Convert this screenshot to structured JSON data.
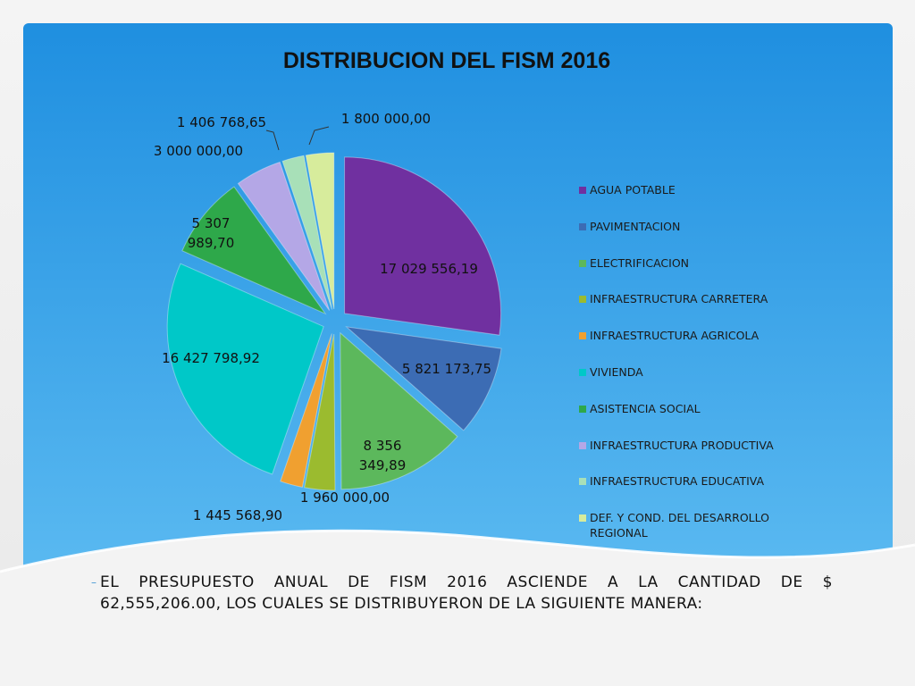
{
  "slide": {
    "caption_bullet": "–",
    "caption_line1_words": [
      "EL",
      "PRESUPUESTO",
      "ANUAL",
      "DE",
      "FISM",
      "2016",
      "ASCIENDE",
      "A",
      "LA",
      "CANTIDAD",
      "DE",
      "$"
    ],
    "caption_line2": "62,555,206.00, LOS CUALES SE DISTRIBUYERON DE LA SIGUIENTE MANERA:"
  },
  "colors": {
    "panel_top": "#1f8fe0",
    "panel_bottom": "#5bbaf1"
  },
  "chart_data": {
    "type": "pie",
    "title": "DISTRIBUCION DEL FISM 2016",
    "legend_position": "right",
    "slices": [
      {
        "name": "AGUA POTABLE",
        "value": 17029556.19,
        "label": "17 029 556,19",
        "color": "#7030a0"
      },
      {
        "name": "PAVIMENTACION",
        "value": 5821173.75,
        "label": "5 821 173,75",
        "color": "#3c6cb4"
      },
      {
        "name": "ELECTRIFICACION",
        "value": 8356349.89,
        "label": "8 356\n349,89",
        "color": "#5cb85c"
      },
      {
        "name": "INFRAESTRUCTURA CARRETERA",
        "value": 1960000.0,
        "label": "1 960 000,00",
        "color": "#9bbb2f"
      },
      {
        "name": "INFRAESTRUCTURA AGRICOLA",
        "value": 1445568.9,
        "label": "1 445 568,90",
        "color": "#f0a030"
      },
      {
        "name": "VIVIENDA",
        "value": 16427798.92,
        "label": "16 427 798,92",
        "color": "#00c8c8"
      },
      {
        "name": "ASISTENCIA SOCIAL",
        "value": 5307989.7,
        "label": "5 307\n989,70",
        "color": "#2ea84a"
      },
      {
        "name": "INFRAESTRUCTURA PRODUCTIVA",
        "value": 3000000.0,
        "label": "3 000 000,00",
        "color": "#b4a7e6"
      },
      {
        "name": "INFRAESTRUCTURA EDUCATIVA",
        "value": 1406768.65,
        "label": "1 406 768,65",
        "color": "#a8e0b8"
      },
      {
        "name": "DEF. Y COND. DEL DESARROLLO REGIONAL",
        "value": 1800000.0,
        "label": "1 800 000,00",
        "color": "#d7ec9c"
      }
    ]
  }
}
